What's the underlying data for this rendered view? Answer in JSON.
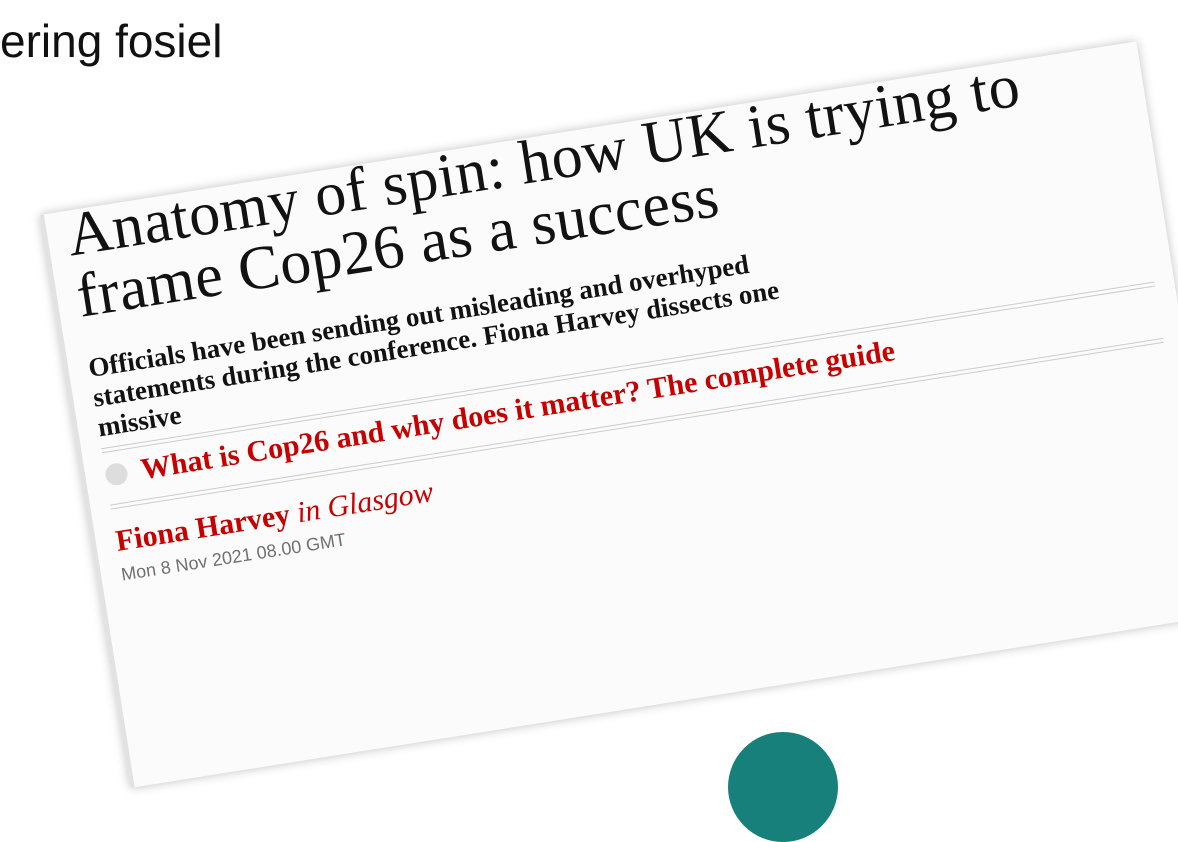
{
  "slide_title": "ering fosiel",
  "article": {
    "headline": "Anatomy of spin: how UK is trying to frame Cop26 as a success",
    "standfirst": "Officials have been sending out misleading and overhyped statements during the conference. Fiona Harvey dissects one missive",
    "related_link": "What is Cop26 and why does it matter? The complete guide",
    "byline": {
      "author": "Fiona Harvey",
      "location": "in Glasgow"
    },
    "date": "Mon 8 Nov 2021 08.00 GMT"
  }
}
